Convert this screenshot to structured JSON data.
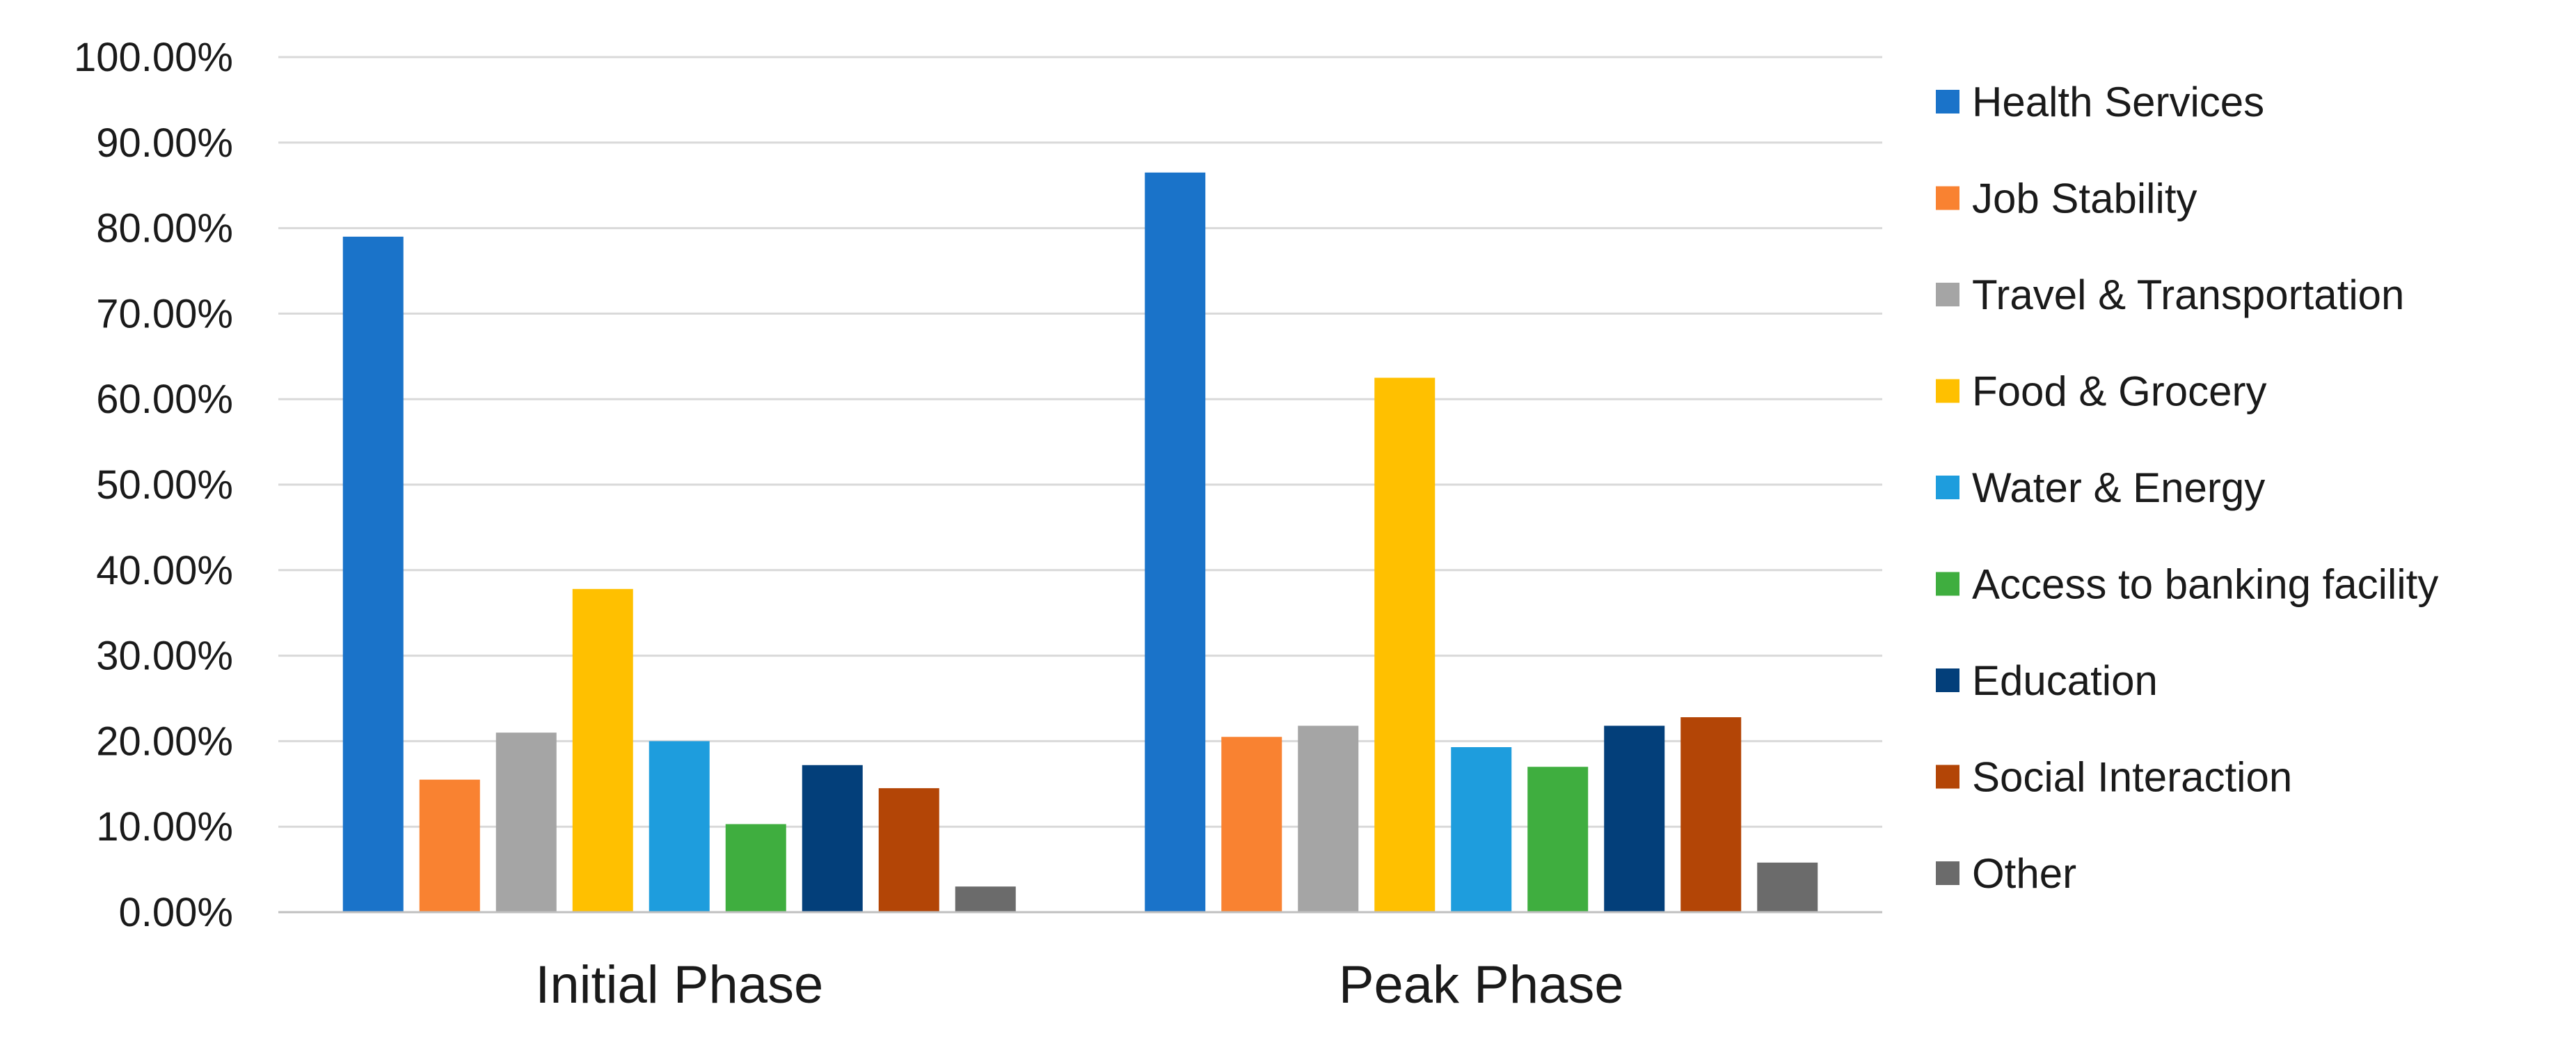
{
  "chart_data": {
    "type": "bar",
    "title": "",
    "xlabel": "",
    "ylabel": "",
    "categories": [
      "Initial Phase",
      "Peak Phase"
    ],
    "ylim": [
      0,
      1.0
    ],
    "yticks": [
      {
        "value": 0.0,
        "label": "0.00%"
      },
      {
        "value": 0.1,
        "label": "10.00%"
      },
      {
        "value": 0.2,
        "label": "20.00%"
      },
      {
        "value": 0.3,
        "label": "30.00%"
      },
      {
        "value": 0.4,
        "label": "40.00%"
      },
      {
        "value": 0.5,
        "label": "50.00%"
      },
      {
        "value": 0.6,
        "label": "60.00%"
      },
      {
        "value": 0.7,
        "label": "70.00%"
      },
      {
        "value": 0.8,
        "label": "80.00%"
      },
      {
        "value": 0.9,
        "label": "90.00%"
      },
      {
        "value": 1.0,
        "label": "100.00%"
      }
    ],
    "grid": true,
    "legend_position": "right",
    "series": [
      {
        "name": "Health Services",
        "color": "#1a73c9",
        "values": [
          0.79,
          0.865
        ]
      },
      {
        "name": "Job Stability",
        "color": "#f98231",
        "values": [
          0.155,
          0.205
        ]
      },
      {
        "name": "Travel & Transportation",
        "color": "#a5a5a5",
        "values": [
          0.21,
          0.218
        ]
      },
      {
        "name": "Food & Grocery",
        "color": "#ffc000",
        "values": [
          0.378,
          0.625
        ]
      },
      {
        "name": "Water & Energy",
        "color": "#1e9ddd",
        "values": [
          0.2,
          0.193
        ]
      },
      {
        "name": "Access to banking facility",
        "color": "#3fae3f",
        "values": [
          0.103,
          0.17
        ]
      },
      {
        "name": "Education",
        "color": "#033f7a",
        "values": [
          0.172,
          0.218
        ]
      },
      {
        "name": "Social Interaction",
        "color": "#b34506",
        "values": [
          0.145,
          0.228
        ]
      },
      {
        "name": "Other",
        "color": "#6b6b6b",
        "values": [
          0.03,
          0.058
        ]
      }
    ]
  }
}
